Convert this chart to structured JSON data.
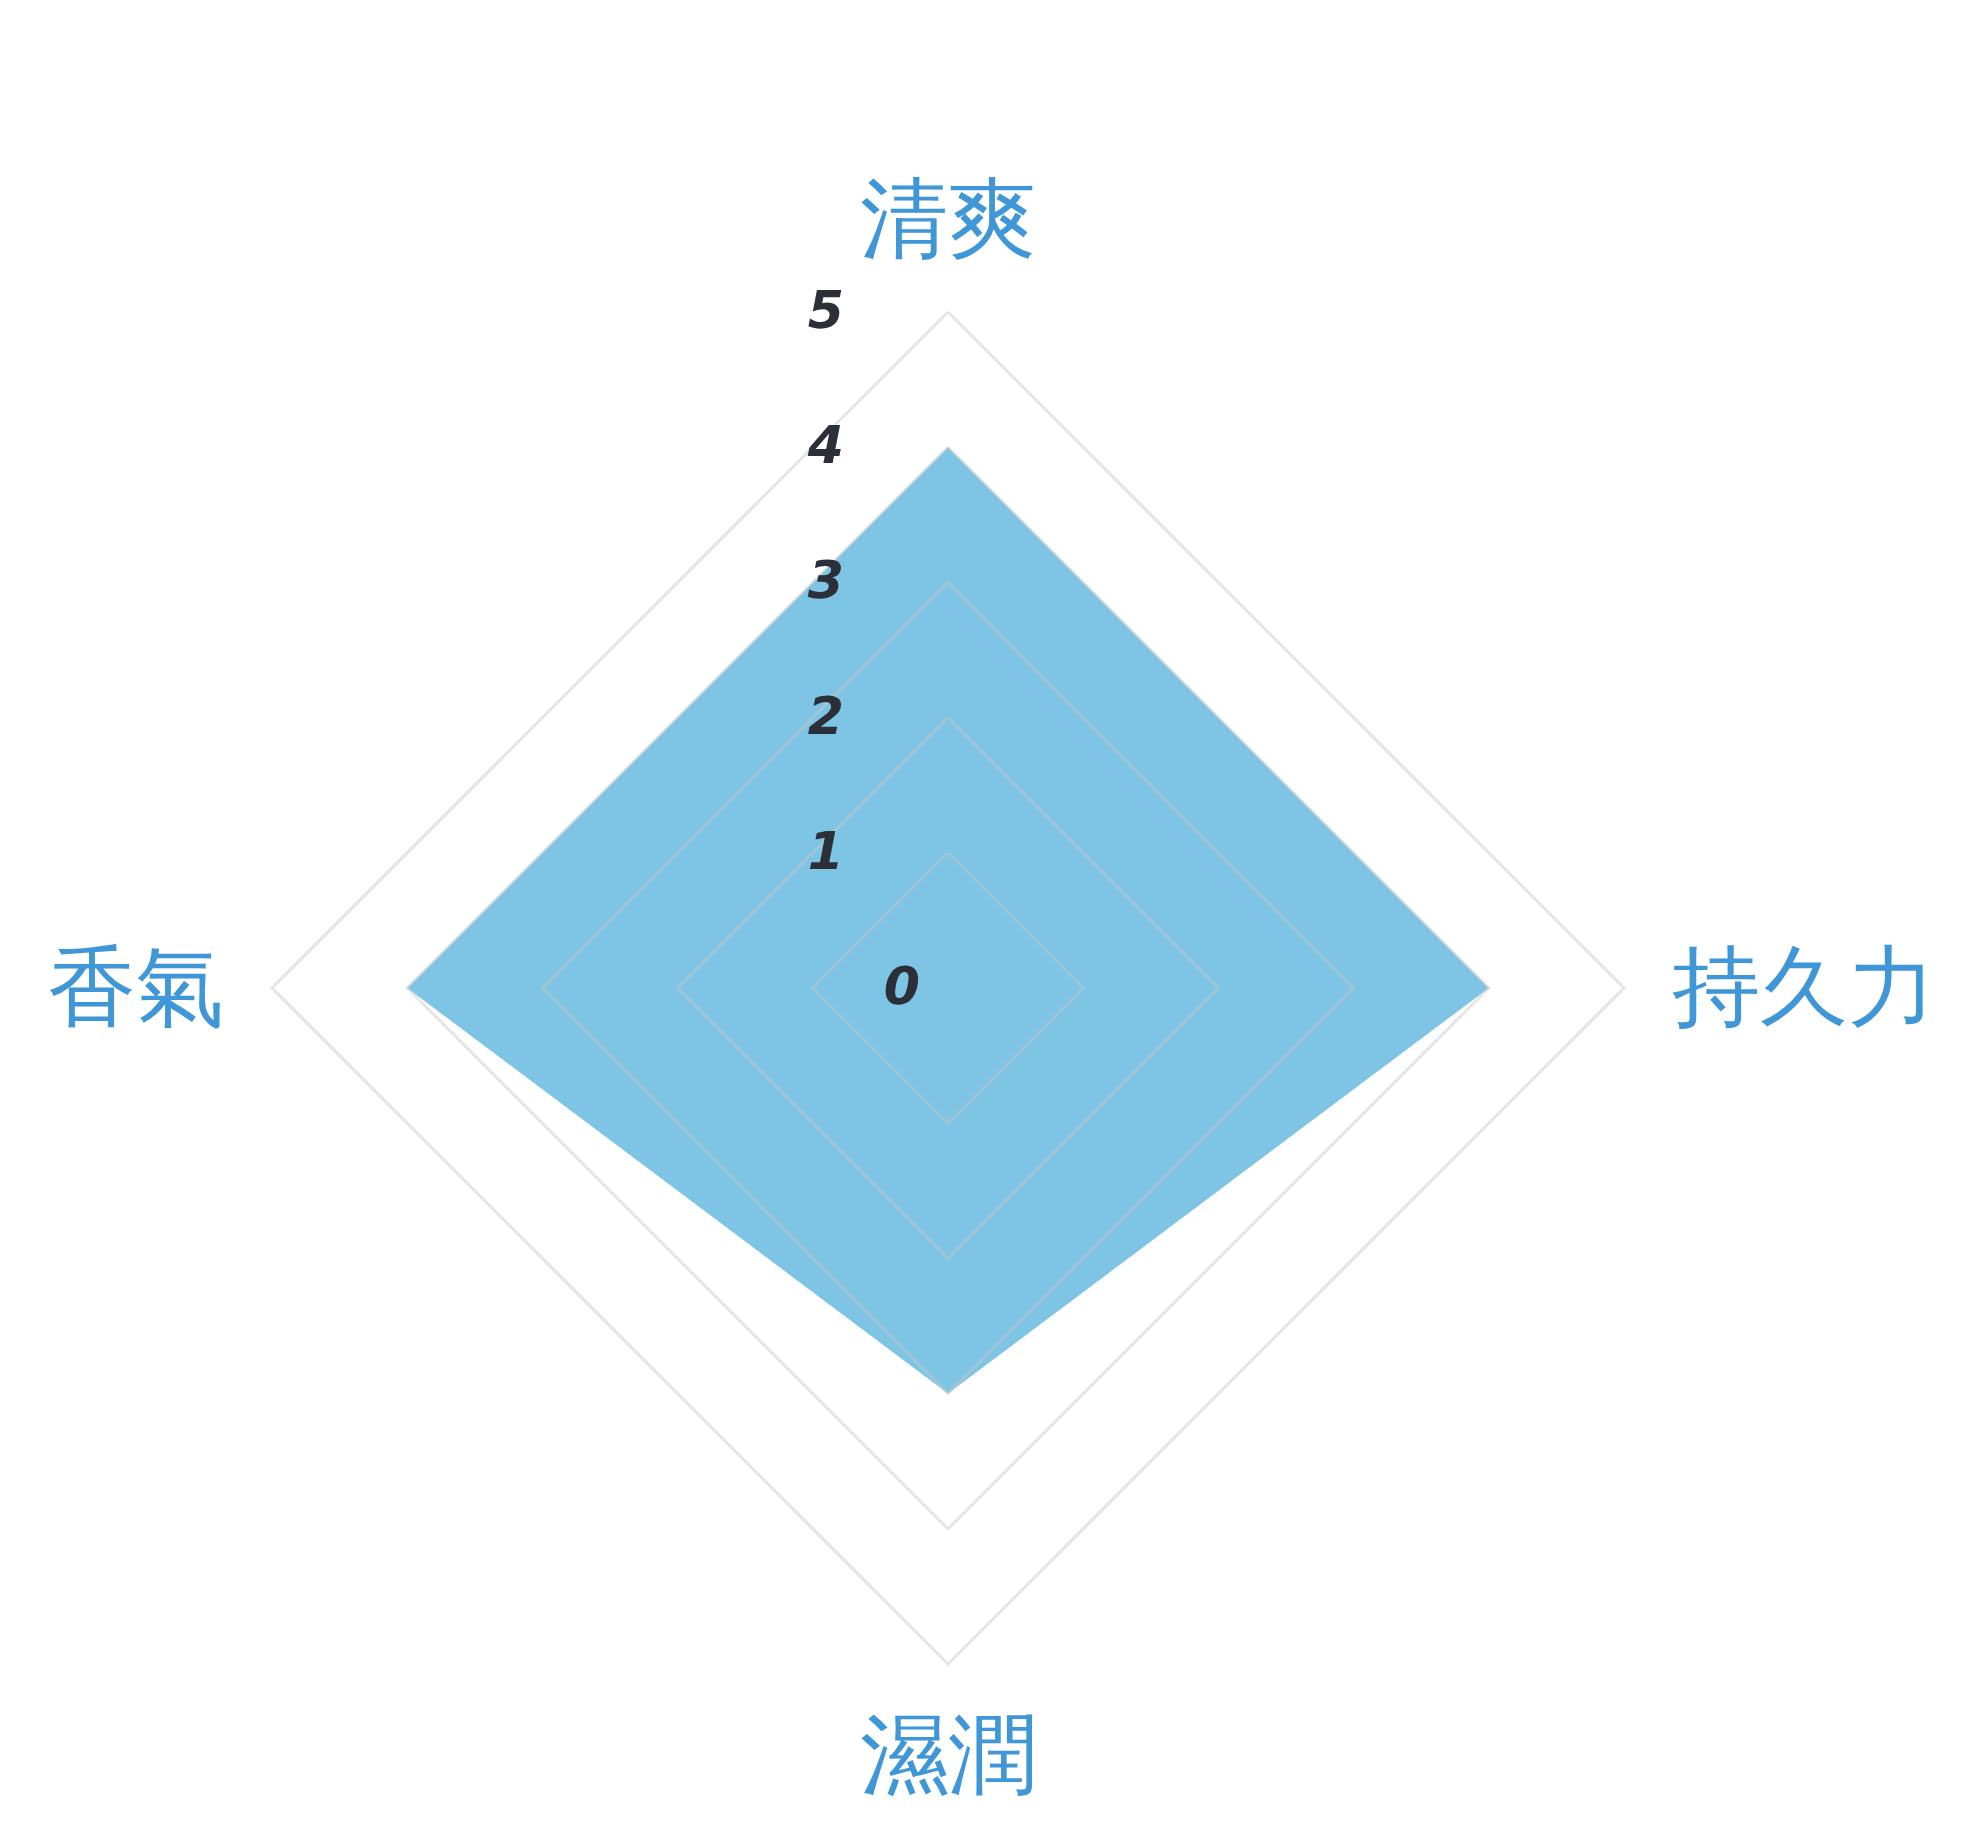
{
  "chart_data": {
    "type": "radar",
    "categories": [
      "清爽",
      "持久力",
      "濕潤",
      "香氣"
    ],
    "series": [
      {
        "color": "#7ec4e4",
        "values": [
          4,
          4,
          3,
          4
        ]
      }
    ],
    "ylim": [
      0,
      5
    ],
    "yticks": [
      0,
      1,
      2,
      3,
      4,
      5
    ],
    "grid": true,
    "marker": "none"
  }
}
